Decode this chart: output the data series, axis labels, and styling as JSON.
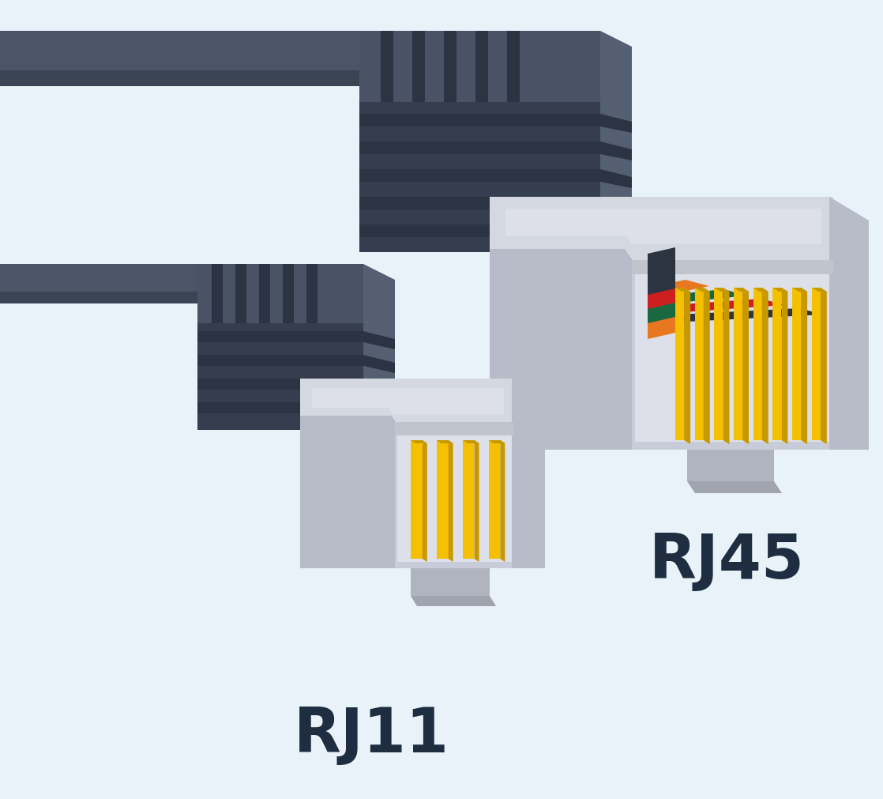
{
  "bg_color": "#e8f2f8",
  "title_rj45": "RJ45",
  "title_rj11": "RJ11",
  "title_color": "#1e2d40",
  "title_fontsize": 56,
  "title_fontweight": "bold",
  "c_cable_top": "#4a5568",
  "c_cable_side": "#3a4454",
  "c_cable_front": "#58677a",
  "c_grip_top": "#4a5265",
  "c_grip_side": "#363d4e",
  "c_grip_front": "#545f72",
  "c_rib_dark": "#2c3342",
  "c_conn_top": "#d4d8e0",
  "c_conn_side": "#b8bcc8",
  "c_conn_front": "#c8ccd8",
  "c_conn_inner": "#dde0e8",
  "c_conn_recess": "#c0c4cc",
  "c_clip_front": "#b0b4be",
  "c_clip_side": "#a0a4ae",
  "c_pin_yellow": "#f5c000",
  "c_pin_yellow_d": "#c89800",
  "c_pin_orange": "#e87820",
  "c_pin_green": "#1a6840",
  "c_pin_red": "#cc2020",
  "c_pin_black": "#2c3440",
  "c_shadow": "#c8d4e0"
}
